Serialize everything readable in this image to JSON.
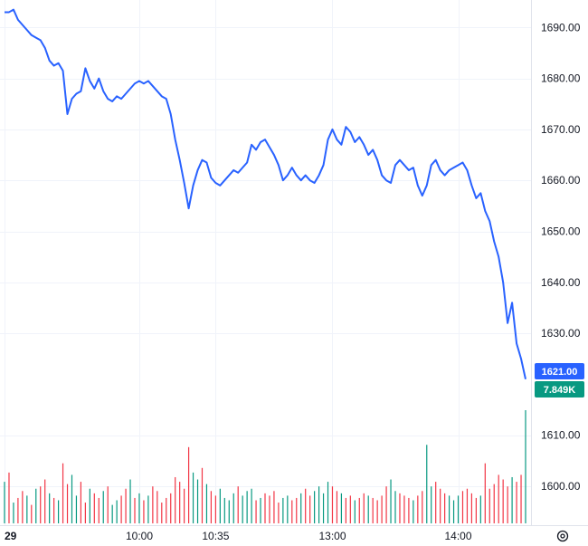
{
  "chart_data": {
    "type": "line",
    "price_axis": {
      "ticks": [
        "1690.00",
        "1680.00",
        "1670.00",
        "1660.00",
        "1650.00",
        "1640.00",
        "1630.00",
        "1610.00",
        "1600.00"
      ],
      "tick_values": [
        1690,
        1680,
        1670,
        1660,
        1650,
        1640,
        1630,
        1610,
        1600
      ],
      "range": [
        1592,
        1694.5
      ]
    },
    "time_axis": {
      "labels": [
        "29",
        "10:00",
        "10:35",
        "13:00",
        "14:00"
      ],
      "label_index": [
        0,
        30,
        47,
        73,
        101
      ],
      "count": 117
    },
    "last_price_label": "1621.00",
    "last_volume_label": "7.849K",
    "colors": {
      "line": "#2962ff",
      "price_badge": "#2962ff",
      "volume_badge": "#089981",
      "vol_up": "#089981",
      "vol_down": "#f23645",
      "grid": "#f0f3fa"
    },
    "grid": true,
    "series": [
      {
        "values": [
          1693.0,
          1693.0,
          1693.5,
          1691.5,
          1690.5,
          1689.5,
          1688.5,
          1688.0,
          1687.5,
          1686.0,
          1683.5,
          1682.5,
          1683.0,
          1681.5,
          1673.0,
          1676.0,
          1677.0,
          1677.5,
          1682.0,
          1679.5,
          1678.0,
          1680.0,
          1677.5,
          1676.0,
          1675.5,
          1676.5,
          1676.0,
          1677.0,
          1678.0,
          1679.0,
          1679.5,
          1679.0,
          1679.5,
          1678.5,
          1677.5,
          1676.5,
          1676.0,
          1673.0,
          1668.0,
          1664.0,
          1659.5,
          1654.5,
          1659.0,
          1662.0,
          1664.0,
          1663.5,
          1660.5,
          1659.5,
          1659.0,
          1660.0,
          1661.0,
          1662.0,
          1661.5,
          1662.5,
          1663.5,
          1667.0,
          1666.0,
          1667.5,
          1668.0,
          1666.5,
          1665.0,
          1663.0,
          1660.0,
          1661.0,
          1662.5,
          1661.0,
          1660.0,
          1661.0,
          1660.0,
          1659.5,
          1661.0,
          1663.0,
          1668.0,
          1670.0,
          1668.0,
          1667.0,
          1670.5,
          1669.5,
          1667.5,
          1668.5,
          1667.0,
          1665.0,
          1666.0,
          1664.0,
          1661.0,
          1660.0,
          1659.5,
          1663.0,
          1664.0,
          1663.0,
          1662.0,
          1662.5,
          1659.0,
          1657.0,
          1659.0,
          1663.0,
          1664.0,
          1662.0,
          1661.0,
          1662.0,
          1662.5,
          1663.0,
          1663.5,
          1662.0,
          1659.0,
          1656.5,
          1657.5,
          1654.0,
          1652.0,
          1648.0,
          1645.0,
          1640.0,
          1632.0,
          1636.0,
          1628.0,
          1625.0,
          1621.0
        ]
      }
    ],
    "volume": {
      "values": [
        1.8,
        2.2,
        0.9,
        1.1,
        1.4,
        1.2,
        0.8,
        1.5,
        1.6,
        1.9,
        1.3,
        1.1,
        1.0,
        2.6,
        1.7,
        2.1,
        1.2,
        1.8,
        0.9,
        1.5,
        1.3,
        1.1,
        1.4,
        1.6,
        0.8,
        1.0,
        1.2,
        1.5,
        1.9,
        1.1,
        1.3,
        1.0,
        1.2,
        1.6,
        1.4,
        0.9,
        1.1,
        1.3,
        2.0,
        1.8,
        1.5,
        3.3,
        2.2,
        1.9,
        2.4,
        1.7,
        1.4,
        1.2,
        1.5,
        1.1,
        1.0,
        1.3,
        1.6,
        1.2,
        1.4,
        1.5,
        1.0,
        1.1,
        1.3,
        1.2,
        1.4,
        0.9,
        1.1,
        1.2,
        1.0,
        1.1,
        1.3,
        1.5,
        1.2,
        1.4,
        1.6,
        1.3,
        1.8,
        1.6,
        1.4,
        1.3,
        1.1,
        1.2,
        1.0,
        1.1,
        1.3,
        1.2,
        1.1,
        1.0,
        1.2,
        1.6,
        1.9,
        1.4,
        1.3,
        1.2,
        1.1,
        1.0,
        1.2,
        1.4,
        3.4,
        1.6,
        1.8,
        1.5,
        1.3,
        1.2,
        1.0,
        1.2,
        1.4,
        1.5,
        1.3,
        1.1,
        1.2,
        2.6,
        1.5,
        1.7,
        2.1,
        1.9,
        1.6,
        2.0,
        1.8,
        2.1,
        4.9
      ],
      "up": [
        1,
        0,
        1,
        0,
        0,
        1,
        0,
        1,
        0,
        0,
        1,
        0,
        1,
        0,
        0,
        1,
        1,
        0,
        0,
        1,
        0,
        0,
        1,
        0,
        1,
        1,
        0,
        0,
        1,
        0,
        1,
        0,
        1,
        0,
        0,
        0,
        0,
        0,
        0,
        0,
        0,
        0,
        1,
        1,
        0,
        1,
        0,
        0,
        1,
        1,
        1,
        1,
        0,
        1,
        1,
        1,
        0,
        1,
        0,
        0,
        0,
        0,
        1,
        1,
        0,
        0,
        1,
        0,
        0,
        1,
        1,
        1,
        1,
        0,
        0,
        1,
        0,
        0,
        1,
        0,
        0,
        1,
        0,
        0,
        0,
        0,
        1,
        1,
        0,
        0,
        0,
        1,
        0,
        0,
        1,
        1,
        0,
        0,
        0,
        1,
        1,
        1,
        0,
        0,
        0,
        0,
        1,
        0,
        0,
        0,
        0,
        0,
        0,
        1,
        0,
        0,
        1
      ]
    }
  }
}
